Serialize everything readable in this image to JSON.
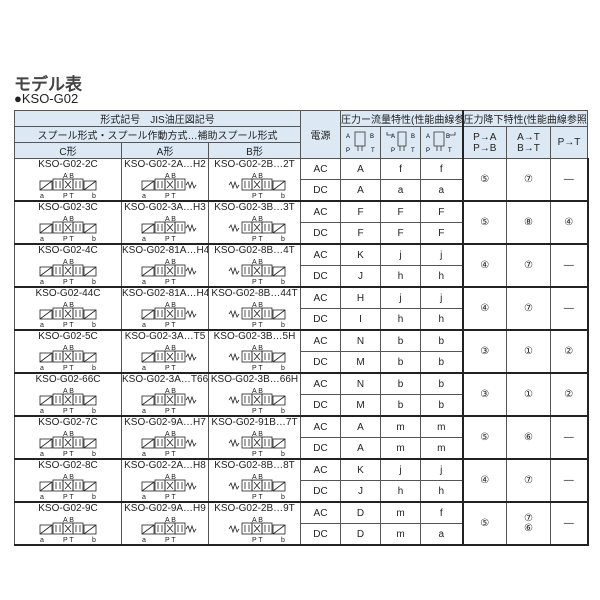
{
  "title": "モデル表",
  "subtitle": "●KSO-G02",
  "header": {
    "row1": "形式記号　JIS油圧図記号",
    "row2": "スプール形式・スプール作動方式…補助スプール形式",
    "c_type": "C形",
    "a_type": "A形",
    "b_type": "B形",
    "power": "電源",
    "flow_group": "圧力ー流量特性(性能曲線参照)",
    "drop_group": "圧力降下特性(性能曲線参照)",
    "drop_cols": [
      "P→A\nP→B",
      "A→T\nB→T",
      "P→T"
    ]
  },
  "rows": [
    {
      "c": "KSO-G02-2C",
      "a": "KSO-G02-2A…H2",
      "b": "KSO-G02-2B…2T",
      "ac": [
        "A",
        "f",
        "f"
      ],
      "dc": [
        "A",
        "a",
        "a"
      ],
      "drop": [
        "⑤",
        "⑦",
        "—"
      ]
    },
    {
      "c": "KSO-G02-3C",
      "a": "KSO-G02-3A…H3",
      "b": "KSO-G02-3B…3T",
      "ac": [
        "F",
        "F",
        "F"
      ],
      "dc": [
        "F",
        "F",
        "F"
      ],
      "drop": [
        "⑤",
        "⑧",
        "④"
      ]
    },
    {
      "c": "KSO-G02-4C",
      "a": "KSO-G02-81A…H4",
      "b": "KSO-G02-8B…4T",
      "ac": [
        "K",
        "j",
        "j"
      ],
      "dc": [
        "J",
        "h",
        "h"
      ],
      "drop": [
        "④",
        "⑦",
        "—"
      ]
    },
    {
      "c": "KSO-G02-44C",
      "a": "KSO-G02-81A…H44",
      "b": "KSO-G02-8B…44T",
      "ac": [
        "H",
        "j",
        "j"
      ],
      "dc": [
        "I",
        "h",
        "h"
      ],
      "drop": [
        "④",
        "⑦",
        "—"
      ]
    },
    {
      "c": "KSO-G02-5C",
      "a": "KSO-G02-3A…T5",
      "b": "KSO-G02-3B…5H",
      "ac": [
        "N",
        "b",
        "b"
      ],
      "dc": [
        "M",
        "b",
        "b"
      ],
      "drop": [
        "③",
        "①",
        "②"
      ]
    },
    {
      "c": "KSO-G02-66C",
      "a": "KSO-G02-3A…T66",
      "b": "KSO-G02-3B…66H",
      "ac": [
        "N",
        "b",
        "b"
      ],
      "dc": [
        "M",
        "b",
        "b"
      ],
      "drop": [
        "③",
        "①",
        "②"
      ]
    },
    {
      "c": "KSO-G02-7C",
      "a": "KSO-G02-9A…H7",
      "b": "KSO-G02-91B…7T",
      "ac": [
        "A",
        "m",
        "m"
      ],
      "dc": [
        "A",
        "m",
        "m"
      ],
      "drop": [
        "⑤",
        "⑥",
        "—"
      ]
    },
    {
      "c": "KSO-G02-8C",
      "a": "KSO-G02-2A…H8",
      "b": "KSO-G02-8B…8T",
      "ac": [
        "K",
        "j",
        "j"
      ],
      "dc": [
        "J",
        "h",
        "h"
      ],
      "drop": [
        "④",
        "⑦",
        "—"
      ]
    },
    {
      "c": "KSO-G02-9C",
      "a": "KSO-G02-9A…H9",
      "b": "KSO-G02-2B…9T",
      "ac": [
        "D",
        "m",
        "f"
      ],
      "dc": [
        "D",
        "m",
        "a"
      ],
      "drop": [
        "⑤",
        "⑦\n⑥",
        "—"
      ]
    }
  ],
  "power_labels": [
    "AC",
    "DC"
  ],
  "port_labels": {
    "ab": "A B",
    "pt": "P T",
    "a": "a",
    "b": "b"
  },
  "colors": {
    "header_bg": "#dce9f5",
    "border": "#555555"
  }
}
